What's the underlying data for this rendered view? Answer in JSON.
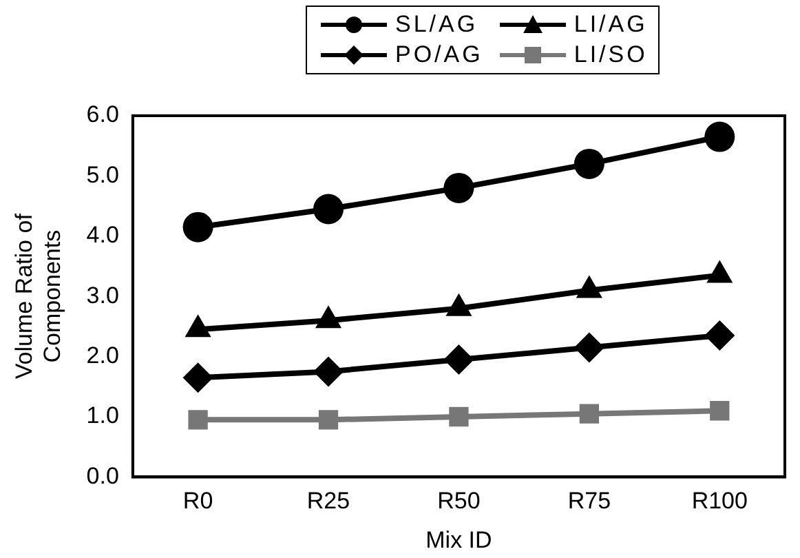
{
  "chart_data": {
    "type": "line",
    "xlabel": "Mix ID",
    "ylabel": "Volume Ratio of\nComponents",
    "categories": [
      "R0",
      "R25",
      "R50",
      "R75",
      "R100"
    ],
    "series": [
      {
        "name": "SL/AG",
        "color": "#000000",
        "marker": "circle",
        "values": [
          4.15,
          4.45,
          4.8,
          5.2,
          5.65
        ]
      },
      {
        "name": "LI/AG",
        "color": "#000000",
        "marker": "triangle",
        "values": [
          2.45,
          2.6,
          2.8,
          3.1,
          3.35
        ]
      },
      {
        "name": "PO/AG",
        "color": "#000000",
        "marker": "diamond",
        "values": [
          1.65,
          1.75,
          1.95,
          2.15,
          2.35
        ]
      },
      {
        "name": "LI/SO",
        "color": "#777777",
        "marker": "square",
        "values": [
          0.95,
          0.95,
          1.0,
          1.05,
          1.1
        ]
      }
    ],
    "ylim": [
      0,
      6
    ],
    "yticks": [
      {
        "value": 0,
        "label": "0.0"
      },
      {
        "value": 1,
        "label": "1.0"
      },
      {
        "value": 2,
        "label": "2.0"
      },
      {
        "value": 3,
        "label": "3.0"
      },
      {
        "value": 4,
        "label": "4.0"
      },
      {
        "value": 5,
        "label": "5.0"
      },
      {
        "value": 6,
        "label": "6.0"
      }
    ],
    "grid": false,
    "legend": "top",
    "line_style": "solid"
  }
}
